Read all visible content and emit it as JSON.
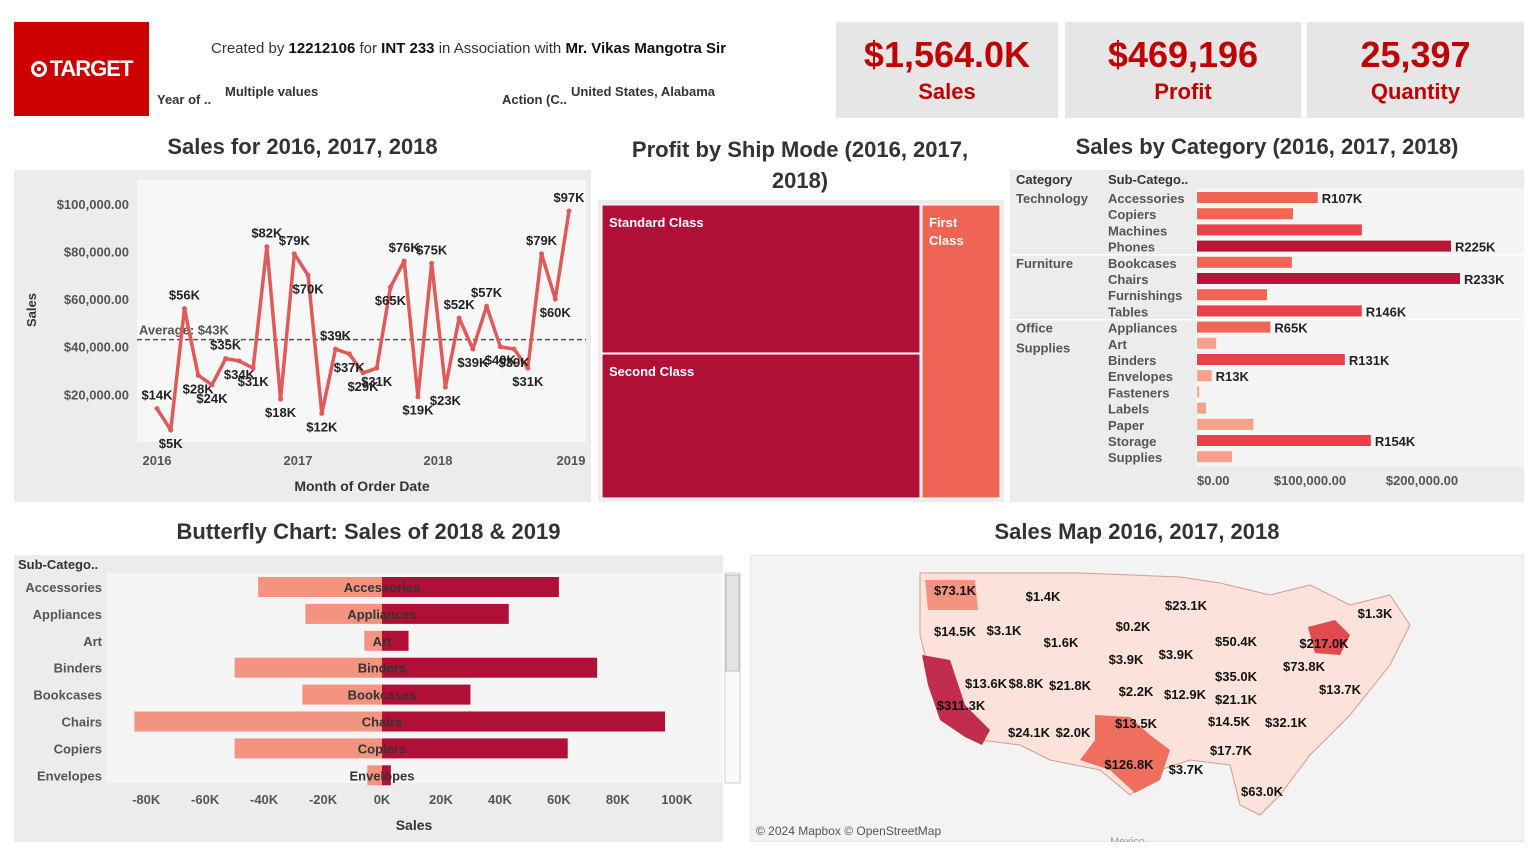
{
  "header": {
    "logo_text": "TARGET",
    "created_prefix": "Created by",
    "created_id": "12212106",
    "created_for": "for",
    "created_course": "INT 233",
    "created_assoc": "in Association with",
    "created_mentor": "Mr. Vikas Mangotra Sir",
    "filter_year_label": "Year of ..",
    "filter_year_value": "Multiple values",
    "filter_action_label": "Action (C..",
    "filter_action_value": "United States, Alabama"
  },
  "kpis": [
    {
      "value": "$1,564.0K",
      "label": "Sales"
    },
    {
      "value": "$469,196",
      "label": "Profit"
    },
    {
      "value": "25,397",
      "label": "Quantity"
    }
  ],
  "titles": {
    "line": "Sales for 2016, 2017, 2018",
    "treemap_line1": "Profit by Ship Mode (2016, 2017,",
    "treemap_line2": "2018)",
    "category": "Sales by Category (2016, 2017, 2018)",
    "butterfly": "Butterfly Chart: Sales of 2018 & 2019",
    "map": "Sales Map 2016, 2017, 2018"
  },
  "colors": {
    "line": "#e05a5a",
    "dark_red": "#b01036",
    "mid_red": "#e8414a",
    "light_red": "#f7a08c",
    "salmon": "#f4937f",
    "kpi_red": "#c00000"
  },
  "chart_data": [
    {
      "type": "line",
      "title": "Sales for 2016, 2017, 2018",
      "xlabel": "Month of Order Date",
      "ylabel": "Sales",
      "x_ticks": [
        "2016",
        "2017",
        "2018",
        "2019"
      ],
      "y_ticks": [
        "$20,000.00",
        "$40,000.00",
        "$60,000.00",
        "$80,000.00",
        "$100,000.00"
      ],
      "ylim": [
        0,
        110000
      ],
      "average_label": "Average: $43K",
      "average": 43000,
      "values": [
        14,
        5,
        56,
        28,
        24,
        35,
        34,
        31,
        82,
        18,
        79,
        70,
        12,
        39,
        37,
        29,
        31,
        65,
        76,
        19,
        75,
        23,
        52,
        39,
        57,
        40,
        39,
        31,
        79,
        60,
        97
      ],
      "labels": [
        "$14K",
        "$5K",
        "$56K",
        "$28K",
        "$24K",
        "$35K",
        "$34K",
        "$31K",
        "$82K",
        "$18K",
        "$79K",
        "$70K",
        "$12K",
        "$39K",
        "$37K",
        "$29K",
        "$31K",
        "$65K",
        "$76K",
        "$19K",
        "$75K",
        "$23K",
        "$52K",
        "$39K",
        "$57K",
        "$40K",
        "$39K",
        "$31K",
        "$79K",
        "$60K",
        "$97K"
      ]
    },
    {
      "type": "treemap",
      "title": "Profit by Ship Mode (2016, 2017, 2018)",
      "cells": [
        {
          "label": "Standard Class"
        },
        {
          "label": "Second Class"
        },
        {
          "label": "First",
          "label2": "Class"
        }
      ]
    },
    {
      "type": "bar",
      "title": "Sales by Category (2016, 2017, 2018)",
      "header_category": "Category",
      "header_sub": "Sub-Catego..",
      "x_ticks": [
        "$0.00",
        "$100,000.00",
        "$200,000.00"
      ],
      "groups": [
        {
          "name": "Technology",
          "name2": "",
          "items": [
            {
              "sub": "Accessories",
              "value": 107,
              "label": "R107K"
            },
            {
              "sub": "Copiers",
              "value": 85,
              "label": ""
            },
            {
              "sub": "Machines",
              "value": 146,
              "label": ""
            },
            {
              "sub": "Phones",
              "value": 225,
              "label": "R225K"
            }
          ]
        },
        {
          "name": "Furniture",
          "name2": "",
          "items": [
            {
              "sub": "Bookcases",
              "value": 84,
              "label": ""
            },
            {
              "sub": "Chairs",
              "value": 233,
              "label": "R233K"
            },
            {
              "sub": "Furnishings",
              "value": 62,
              "label": ""
            },
            {
              "sub": "Tables",
              "value": 146,
              "label": "R146K"
            }
          ]
        },
        {
          "name": "Office",
          "name2": "Supplies",
          "items": [
            {
              "sub": "Appliances",
              "value": 65,
              "label": "R65K"
            },
            {
              "sub": "Art",
              "value": 17,
              "label": ""
            },
            {
              "sub": "Binders",
              "value": 131,
              "label": "R131K"
            },
            {
              "sub": "Envelopes",
              "value": 13,
              "label": "R13K"
            },
            {
              "sub": "Fasteners",
              "value": 2,
              "label": ""
            },
            {
              "sub": "Labels",
              "value": 8,
              "label": ""
            },
            {
              "sub": "Paper",
              "value": 50,
              "label": ""
            },
            {
              "sub": "Storage",
              "value": 154,
              "label": "R154K"
            },
            {
              "sub": "Supplies",
              "value": 31,
              "label": ""
            }
          ]
        }
      ]
    },
    {
      "type": "bar",
      "title": "Butterfly Chart: Sales of 2018 & 2019",
      "header_sub": "Sub-Catego..",
      "xlabel": "Sales",
      "x_ticks": [
        "-80K",
        "-60K",
        "-40K",
        "-20K",
        "0K",
        "20K",
        "40K",
        "60K",
        "80K",
        "100K"
      ],
      "xlim": [
        -84,
        104
      ],
      "categories": [
        "Accessories",
        "Appliances",
        "Art",
        "Binders",
        "Bookcases",
        "Chairs",
        "Copiers",
        "Envelopes"
      ],
      "left": [
        -42,
        -26,
        -6,
        -50,
        -27,
        -84,
        -50,
        -5
      ],
      "right": [
        60,
        43,
        9,
        73,
        30,
        96,
        63,
        3
      ]
    },
    {
      "type": "map",
      "title": "Sales Map 2016, 2017, 2018",
      "attribution": "© 2024 Mapbox © OpenStreetMap",
      "labels": [
        "$73.1K",
        "$1.4K",
        "$23.1K",
        "$1.3K",
        "$14.5K",
        "$3.1K",
        "$0.2K",
        "$1.6K",
        "$50.4K",
        "$217.0K",
        "$3.9K",
        "$3.9K",
        "$73.8K",
        "$13.6K",
        "$8.8K",
        "$21.8K",
        "$35.0K",
        "$2.2K",
        "$12.9K",
        "$13.7K",
        "$311.3K",
        "$21.1K",
        "$13.5K",
        "$14.5K",
        "$32.1K",
        "$24.1K",
        "$2.0K",
        "$17.7K",
        "$126.8K",
        "$3.7K",
        "$63.0K"
      ],
      "country_label": "Mexico"
    }
  ]
}
